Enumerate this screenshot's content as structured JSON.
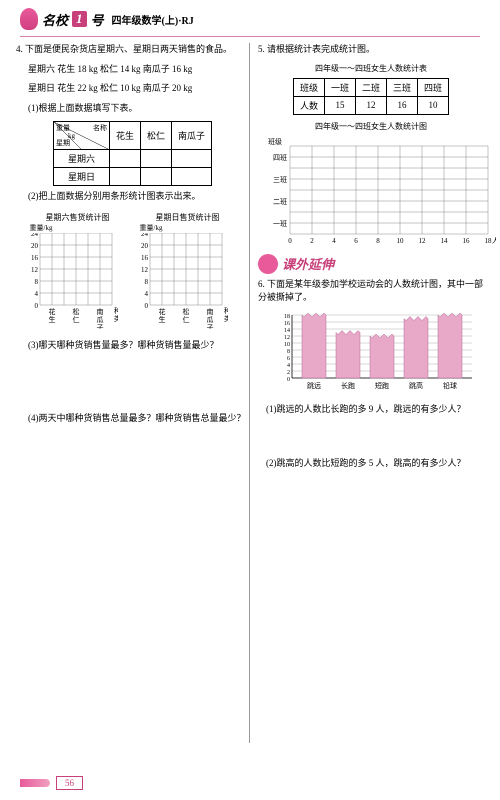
{
  "header": {
    "brand": "名校",
    "brand_suffix": "号",
    "num": "1",
    "subtitle": "四年级数学(上)·RJ"
  },
  "q4": {
    "num": "4.",
    "text": "下面是便民杂货店星期六、星期日两天销售的食品。",
    "sat": "星期六 花生 18 kg 松仁 14 kg 南瓜子 16 kg",
    "sun": "星期日 花生 22 kg 松仁 10 kg 南瓜子 20 kg",
    "sub1": "(1)根据上面数据填写下表。",
    "table": {
      "diag_tl": "重量",
      "diag_tr": "名称",
      "diag_bl": "星期",
      "diag_unit": "kg",
      "cols": [
        "花生",
        "松仁",
        "南瓜子"
      ],
      "rows": [
        "星期六",
        "星期日"
      ]
    },
    "sub2": "(2)把上面数据分别用条形统计图表示出来。",
    "chart1_title": "星期六售货统计图",
    "chart2_title": "星期日售货统计图",
    "y_axis_label": "重量/kg",
    "y_ticks": [
      24,
      20,
      16,
      12,
      8,
      4,
      0
    ],
    "x_cats": [
      "花生",
      "松仁",
      "南瓜子"
    ],
    "x_axis_label": "种类",
    "sub3": "(3)哪天哪种货销售量最多？哪种货销售量最少？",
    "sub4": "(4)两天中哪种货销售总量最多？哪种货销售总量最少？"
  },
  "q5": {
    "num": "5.",
    "text": "请根据统计表完成统计图。",
    "table_title": "四年级一～四班女生人数统计表",
    "cols": [
      "班级",
      "一班",
      "二班",
      "三班",
      "四班"
    ],
    "row_label": "人数",
    "values": [
      15,
      12,
      16,
      10
    ],
    "chart_title": "四年级一～四班女生人数统计图",
    "y_cats": [
      "四班",
      "三班",
      "二班",
      "一班"
    ],
    "y_axis_label": "班级",
    "x_ticks": [
      0,
      2,
      4,
      6,
      8,
      10,
      12,
      14,
      16,
      18
    ],
    "x_axis_label": "人数"
  },
  "section": {
    "title": "课外延伸"
  },
  "q6": {
    "num": "6.",
    "text": "下面是某年级参加学校运动会的人数统计图，其中一部分被撕掉了。",
    "y_ticks": [
      18,
      16,
      14,
      12,
      10,
      8,
      6,
      4,
      2,
      0
    ],
    "x_cats": [
      "跳远",
      "长跑",
      "短跑",
      "跳高",
      "铅球"
    ],
    "bar_values": [
      18,
      13,
      12,
      17,
      18
    ],
    "bar_color": "#e8a8c8",
    "grid_color": "#b0b0b0",
    "sub1": "(1)跳远的人数比长跑的多 9 人，跳远的有多少人？",
    "sub2": "(2)跳高的人数比短跑的多 5 人，跳高的有多少人？"
  },
  "footer": {
    "page": "56"
  },
  "style": {
    "grid_stroke": "#888",
    "grid_cell": 11,
    "pink": "#e8a8c8",
    "pink_dark": "#c8407a"
  }
}
